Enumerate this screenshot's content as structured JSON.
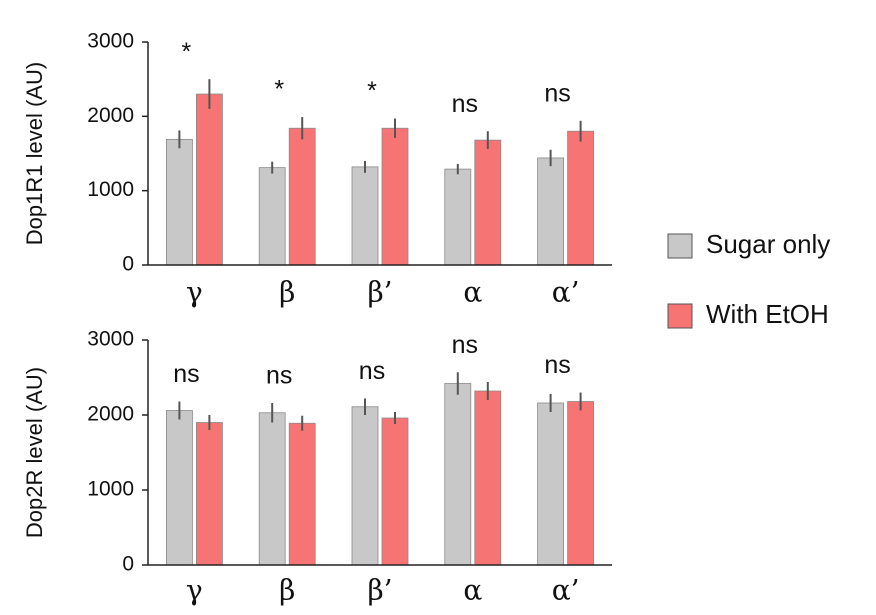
{
  "chart_data": [
    {
      "type": "bar",
      "ylabel": "Dop1R1 level (AU)",
      "categories": [
        "γ",
        "β",
        "β’",
        "α",
        "α’"
      ],
      "ylim": [
        0,
        3000
      ],
      "yticks": [
        0,
        1000,
        2000,
        3000
      ],
      "series": [
        {
          "name": "Sugar only",
          "color": "#c8c8c8",
          "values": [
            1690,
            1310,
            1320,
            1290,
            1440
          ],
          "errors": [
            120,
            80,
            80,
            70,
            110
          ]
        },
        {
          "name": "With EtOH",
          "color": "#f77474",
          "values": [
            2300,
            1840,
            1840,
            1680,
            1800
          ],
          "errors": [
            200,
            150,
            130,
            120,
            140
          ]
        }
      ],
      "annotations": [
        "*",
        "*",
        "*",
        "ns",
        "ns"
      ]
    },
    {
      "type": "bar",
      "ylabel": "Dop2R level (AU)",
      "categories": [
        "γ",
        "β",
        "β’",
        "α",
        "α’"
      ],
      "ylim": [
        0,
        3000
      ],
      "yticks": [
        0,
        1000,
        2000,
        3000
      ],
      "series": [
        {
          "color": "#c8c8c8",
          "values": [
            2060,
            2030,
            2110,
            2420,
            2160
          ],
          "errors": [
            120,
            130,
            110,
            150,
            120
          ]
        },
        {
          "color": "#f77474",
          "values": [
            1900,
            1890,
            1960,
            2320,
            2180
          ],
          "errors": [
            100,
            100,
            80,
            120,
            120
          ]
        }
      ],
      "annotations": [
        "ns",
        "ns",
        "ns",
        "ns",
        "ns"
      ]
    }
  ]
}
